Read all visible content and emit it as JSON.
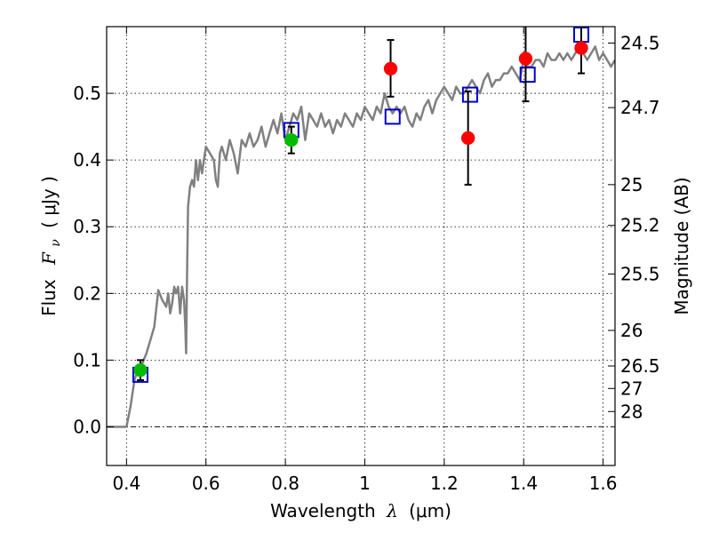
{
  "chart_data": {
    "type": "scatter",
    "xlabel": "Wavelength",
    "xlabel_symbol": "λ",
    "xlabel_unit": "(μm)",
    "ylabel": "Flux",
    "ylabel_symbol_main": "F",
    "ylabel_symbol_sub": "ν",
    "ylabel_unit": "( μJy )",
    "y2label": "Magnitude (AB)",
    "xlim": [
      0.35,
      1.63
    ],
    "ylim": [
      -0.058,
      0.6
    ],
    "grid": true,
    "x_ticks": [
      0.4,
      0.6,
      0.8,
      1.0,
      1.2,
      1.4,
      1.6
    ],
    "x_tick_labels": [
      "0.4",
      "0.6",
      "0.8",
      "1",
      "1.2",
      "1.4",
      "1.6"
    ],
    "y_ticks": [
      0.0,
      0.1,
      0.2,
      0.3,
      0.4,
      0.5
    ],
    "y_tick_labels": [
      "0.0",
      "0.1",
      "0.2",
      "0.3",
      "0.4",
      "0.5"
    ],
    "y2_ticks": [
      {
        "label": "24.5",
        "flux": 0.5754
      },
      {
        "label": "24.7",
        "flux": 0.4786
      },
      {
        "label": "25",
        "flux": 0.3631
      },
      {
        "label": "25.2",
        "flux": 0.302
      },
      {
        "label": "25.5",
        "flux": 0.2291
      },
      {
        "label": "26",
        "flux": 0.1445
      },
      {
        "label": "26.5",
        "flux": 0.0912
      },
      {
        "label": "27",
        "flux": 0.0575
      },
      {
        "label": "28",
        "flux": 0.0229
      }
    ],
    "series": [
      {
        "kind": "line",
        "color": "#808080",
        "x": [
          0.35,
          0.4,
          0.41,
          0.42,
          0.43,
          0.44,
          0.45,
          0.46,
          0.47,
          0.48,
          0.49,
          0.5,
          0.505,
          0.51,
          0.515,
          0.52,
          0.525,
          0.53,
          0.535,
          0.54,
          0.545,
          0.548,
          0.55,
          0.553,
          0.555,
          0.56,
          0.565,
          0.57,
          0.575,
          0.58,
          0.585,
          0.59,
          0.6,
          0.61,
          0.62,
          0.625,
          0.63,
          0.635,
          0.64,
          0.65,
          0.66,
          0.67,
          0.68,
          0.69,
          0.7,
          0.71,
          0.72,
          0.73,
          0.74,
          0.75,
          0.76,
          0.77,
          0.78,
          0.79,
          0.8,
          0.81,
          0.82,
          0.83,
          0.84,
          0.85,
          0.86,
          0.87,
          0.88,
          0.89,
          0.9,
          0.91,
          0.92,
          0.93,
          0.94,
          0.95,
          0.96,
          0.97,
          0.98,
          0.99,
          1.0,
          1.01,
          1.02,
          1.03,
          1.04,
          1.05,
          1.06,
          1.07,
          1.08,
          1.09,
          1.1,
          1.11,
          1.12,
          1.13,
          1.14,
          1.15,
          1.16,
          1.17,
          1.18,
          1.19,
          1.2,
          1.21,
          1.22,
          1.23,
          1.24,
          1.25,
          1.26,
          1.27,
          1.28,
          1.29,
          1.3,
          1.31,
          1.32,
          1.33,
          1.34,
          1.35,
          1.36,
          1.37,
          1.38,
          1.39,
          1.4,
          1.41,
          1.42,
          1.43,
          1.44,
          1.45,
          1.46,
          1.47,
          1.48,
          1.49,
          1.5,
          1.51,
          1.52,
          1.53,
          1.54,
          1.55,
          1.56,
          1.57,
          1.58,
          1.59,
          1.6,
          1.61,
          1.62,
          1.63
        ],
        "y": [
          0.0,
          0.0,
          0.03,
          0.07,
          0.09,
          0.095,
          0.11,
          0.13,
          0.15,
          0.205,
          0.19,
          0.18,
          0.2,
          0.17,
          0.185,
          0.21,
          0.2,
          0.21,
          0.17,
          0.21,
          0.19,
          0.15,
          0.11,
          0.25,
          0.33,
          0.36,
          0.37,
          0.36,
          0.4,
          0.37,
          0.4,
          0.38,
          0.42,
          0.41,
          0.4,
          0.37,
          0.36,
          0.41,
          0.42,
          0.4,
          0.43,
          0.41,
          0.38,
          0.43,
          0.42,
          0.44,
          0.42,
          0.43,
          0.45,
          0.42,
          0.44,
          0.46,
          0.44,
          0.47,
          0.43,
          0.45,
          0.47,
          0.46,
          0.48,
          0.43,
          0.47,
          0.46,
          0.45,
          0.47,
          0.45,
          0.46,
          0.44,
          0.46,
          0.45,
          0.47,
          0.46,
          0.45,
          0.47,
          0.46,
          0.48,
          0.47,
          0.46,
          0.48,
          0.47,
          0.5,
          0.48,
          0.47,
          0.48,
          0.47,
          0.48,
          0.46,
          0.45,
          0.47,
          0.46,
          0.48,
          0.49,
          0.47,
          0.49,
          0.5,
          0.51,
          0.5,
          0.49,
          0.51,
          0.5,
          0.5,
          0.51,
          0.52,
          0.51,
          0.5,
          0.52,
          0.53,
          0.51,
          0.52,
          0.52,
          0.53,
          0.53,
          0.54,
          0.53,
          0.52,
          0.55,
          0.54,
          0.54,
          0.55,
          0.55,
          0.54,
          0.56,
          0.55,
          0.55,
          0.56,
          0.55,
          0.56,
          0.55,
          0.56,
          0.57,
          0.56,
          0.55,
          0.56,
          0.57,
          0.55,
          0.56,
          0.55,
          0.54,
          0.55
        ]
      },
      {
        "kind": "markers",
        "marker": "open-square",
        "color": "#0000cc",
        "x": [
          0.435,
          0.815,
          1.07,
          1.265,
          1.41,
          1.545
        ],
        "y": [
          0.078,
          0.445,
          0.465,
          0.498,
          0.528,
          0.588
        ]
      },
      {
        "kind": "markers",
        "marker": "filled-circle",
        "color": "#00bb00",
        "x": [
          0.435,
          0.815
        ],
        "y": [
          0.085,
          0.43
        ],
        "err_low": [
          0.07,
          0.41
        ],
        "err_high": [
          0.1,
          0.45
        ]
      },
      {
        "kind": "markers",
        "marker": "filled-circle",
        "color": "#ff0000",
        "x": [
          1.065,
          1.26,
          1.405,
          1.545
        ],
        "y": [
          0.537,
          0.433,
          0.552,
          0.568
        ],
        "err_low": [
          0.495,
          0.363,
          0.488,
          0.53
        ],
        "err_high": [
          0.58,
          0.503,
          0.616,
          0.61
        ]
      }
    ]
  }
}
